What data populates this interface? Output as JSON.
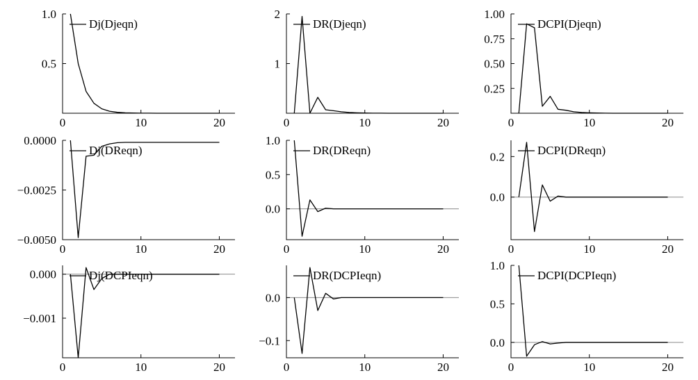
{
  "chart_data": [
    {
      "type": "line",
      "legend": "Dj(Djeqn)",
      "legend_placement": "top-left",
      "xlim": [
        0,
        22
      ],
      "ylim": [
        0,
        1.0
      ],
      "xticks": [
        0,
        10,
        20
      ],
      "xtick_labels": [
        "0",
        "10",
        "20"
      ],
      "yticks": [
        0.5,
        1.0
      ],
      "ytick_labels": [
        "0.5",
        "1.0"
      ],
      "zero_line": false,
      "x": [
        1,
        2,
        3,
        4,
        5,
        6,
        7,
        8,
        9,
        10,
        11,
        12,
        13,
        14,
        15,
        16,
        17,
        18,
        19,
        20
      ],
      "values": [
        1.0,
        0.5,
        0.22,
        0.1,
        0.045,
        0.02,
        0.009,
        0.004,
        0.002,
        0.001,
        0.0005,
        0.0002,
        0.0001,
        0,
        0,
        0,
        0,
        0,
        0,
        0
      ]
    },
    {
      "type": "line",
      "legend": "DR(Djeqn)",
      "legend_placement": "top-left",
      "xlim": [
        0,
        22
      ],
      "ylim": [
        0,
        2
      ],
      "xticks": [
        0,
        10,
        20
      ],
      "xtick_labels": [
        "0",
        "10",
        "20"
      ],
      "yticks": [
        1,
        2
      ],
      "ytick_labels": [
        "1",
        "2"
      ],
      "zero_line": false,
      "x": [
        1,
        2,
        3,
        4,
        5,
        6,
        7,
        8,
        9,
        10,
        11,
        12,
        13,
        14,
        15,
        16,
        17,
        18,
        19,
        20
      ],
      "values": [
        0.0,
        1.95,
        0.0,
        0.32,
        0.07,
        0.05,
        0.03,
        0.015,
        0.008,
        0.004,
        0.002,
        0.001,
        0,
        0,
        0,
        0,
        0,
        0,
        0,
        0
      ]
    },
    {
      "type": "line",
      "legend": "DCPI(Djeqn)",
      "legend_placement": "top-left",
      "xlim": [
        0,
        22
      ],
      "ylim": [
        0,
        1.0
      ],
      "xticks": [
        0,
        10,
        20
      ],
      "xtick_labels": [
        "0",
        "10",
        "20"
      ],
      "yticks": [
        0.25,
        0.5,
        0.75,
        1.0
      ],
      "ytick_labels": [
        "0.25",
        "0.50",
        "0.75",
        "1.00"
      ],
      "zero_line": false,
      "x": [
        1,
        2,
        3,
        4,
        5,
        6,
        7,
        8,
        9,
        10,
        11,
        12,
        13,
        14,
        15,
        16,
        17,
        18,
        19,
        20
      ],
      "values": [
        0.0,
        0.9,
        0.86,
        0.07,
        0.17,
        0.04,
        0.03,
        0.015,
        0.008,
        0.004,
        0.002,
        0.001,
        0,
        0,
        0,
        0,
        0,
        0,
        0,
        0
      ]
    },
    {
      "type": "line",
      "legend": "Dj(DReqn)",
      "legend_placement": "top-left",
      "xlim": [
        0,
        22
      ],
      "ylim": [
        -0.005,
        0.0
      ],
      "xticks": [
        0,
        10,
        20
      ],
      "xtick_labels": [
        "0",
        "10",
        "20"
      ],
      "yticks": [
        -0.005,
        -0.0025,
        0.0
      ],
      "ytick_labels": [
        "−0.0050",
        "−0.0025",
        "0.0000"
      ],
      "zero_line": false,
      "x": [
        1,
        2,
        3,
        4,
        5,
        6,
        7,
        8,
        9,
        10,
        11,
        12,
        13,
        14,
        15,
        16,
        17,
        18,
        19,
        20
      ],
      "values": [
        0.0,
        -0.0049,
        -0.0008,
        -0.00075,
        -0.0003,
        -0.00018,
        -0.00012,
        -0.0001,
        -0.0001,
        -0.0001,
        -0.0001,
        -0.0001,
        -0.0001,
        -0.0001,
        -0.0001,
        -0.0001,
        -0.0001,
        -0.0001,
        -0.0001,
        -0.0001
      ]
    },
    {
      "type": "line",
      "legend": "DR(DReqn)",
      "legend_placement": "top-left",
      "xlim": [
        0,
        22
      ],
      "ylim": [
        -0.45,
        1.0
      ],
      "xticks": [
        0,
        10,
        20
      ],
      "xtick_labels": [
        "0",
        "10",
        "20"
      ],
      "yticks": [
        0.0,
        0.5,
        1.0
      ],
      "ytick_labels": [
        "0.0",
        "0.5",
        "1.0"
      ],
      "zero_line": true,
      "x": [
        1,
        2,
        3,
        4,
        5,
        6,
        7,
        8,
        9,
        10,
        11,
        12,
        13,
        14,
        15,
        16,
        17,
        18,
        19,
        20
      ],
      "values": [
        1.0,
        -0.4,
        0.13,
        -0.04,
        0.01,
        0.0,
        0.0,
        0,
        0,
        0,
        0,
        0,
        0,
        0,
        0,
        0,
        0,
        0,
        0,
        0
      ]
    },
    {
      "type": "line",
      "legend": "DCPI(DReqn)",
      "legend_placement": "top-left",
      "xlim": [
        0,
        22
      ],
      "ylim": [
        -0.21,
        0.28
      ],
      "xticks": [
        0,
        10,
        20
      ],
      "xtick_labels": [
        "0",
        "10",
        "20"
      ],
      "yticks": [
        0.0,
        0.2
      ],
      "ytick_labels": [
        "0.0",
        "0.2"
      ],
      "zero_line": true,
      "x": [
        1,
        2,
        3,
        4,
        5,
        6,
        7,
        8,
        9,
        10,
        11,
        12,
        13,
        14,
        15,
        16,
        17,
        18,
        19,
        20
      ],
      "values": [
        0.0,
        0.27,
        -0.17,
        0.06,
        -0.02,
        0.005,
        0.0,
        0,
        0,
        0,
        0,
        0,
        0,
        0,
        0,
        0,
        0,
        0,
        0,
        0
      ]
    },
    {
      "type": "line",
      "legend": "Dj(DCPIeqn)",
      "legend_placement": "top-left",
      "xlim": [
        0,
        22
      ],
      "ylim": [
        -0.0019,
        0.0002
      ],
      "xticks": [
        0,
        10,
        20
      ],
      "xtick_labels": [
        "0",
        "10",
        "20"
      ],
      "yticks": [
        -0.001,
        0.0
      ],
      "ytick_labels": [
        "−0.001",
        "0.000"
      ],
      "zero_line": true,
      "x": [
        1,
        2,
        3,
        4,
        5,
        6,
        7,
        8,
        9,
        10,
        11,
        12,
        13,
        14,
        15,
        16,
        17,
        18,
        19,
        20
      ],
      "values": [
        0.0,
        -0.0019,
        0.00015,
        -0.00035,
        -0.0001,
        0.0,
        0.0,
        0,
        0,
        0,
        0,
        0,
        0,
        0,
        0,
        0,
        0,
        0,
        0,
        0
      ]
    },
    {
      "type": "line",
      "legend": "DR(DCPIeqn)",
      "legend_placement": "top-left",
      "xlim": [
        0,
        22
      ],
      "ylim": [
        -0.14,
        0.075
      ],
      "xticks": [
        0,
        10,
        20
      ],
      "xtick_labels": [
        "0",
        "10",
        "20"
      ],
      "yticks": [
        -0.1,
        0.0
      ],
      "ytick_labels": [
        "−0.1",
        "0.0"
      ],
      "zero_line": true,
      "x": [
        1,
        2,
        3,
        4,
        5,
        6,
        7,
        8,
        9,
        10,
        11,
        12,
        13,
        14,
        15,
        16,
        17,
        18,
        19,
        20
      ],
      "values": [
        0.0,
        -0.13,
        0.07,
        -0.03,
        0.01,
        -0.003,
        0.0,
        0,
        0,
        0,
        0,
        0,
        0,
        0,
        0,
        0,
        0,
        0,
        0,
        0
      ]
    },
    {
      "type": "line",
      "legend": "DCPI(DCPIeqn)",
      "legend_placement": "top-left",
      "xlim": [
        0,
        22
      ],
      "ylim": [
        -0.2,
        1.0
      ],
      "xticks": [
        0,
        10,
        20
      ],
      "xtick_labels": [
        "0",
        "10",
        "20"
      ],
      "yticks": [
        0.0,
        0.5,
        1.0
      ],
      "ytick_labels": [
        "0.0",
        "0.5",
        "1.0"
      ],
      "zero_line": true,
      "x": [
        1,
        2,
        3,
        4,
        5,
        6,
        7,
        8,
        9,
        10,
        11,
        12,
        13,
        14,
        15,
        16,
        17,
        18,
        19,
        20
      ],
      "values": [
        1.0,
        -0.18,
        -0.03,
        0.01,
        -0.02,
        -0.01,
        0.0,
        0,
        0,
        0,
        0,
        0,
        0,
        0,
        0,
        0,
        0,
        0,
        0,
        0
      ]
    }
  ]
}
